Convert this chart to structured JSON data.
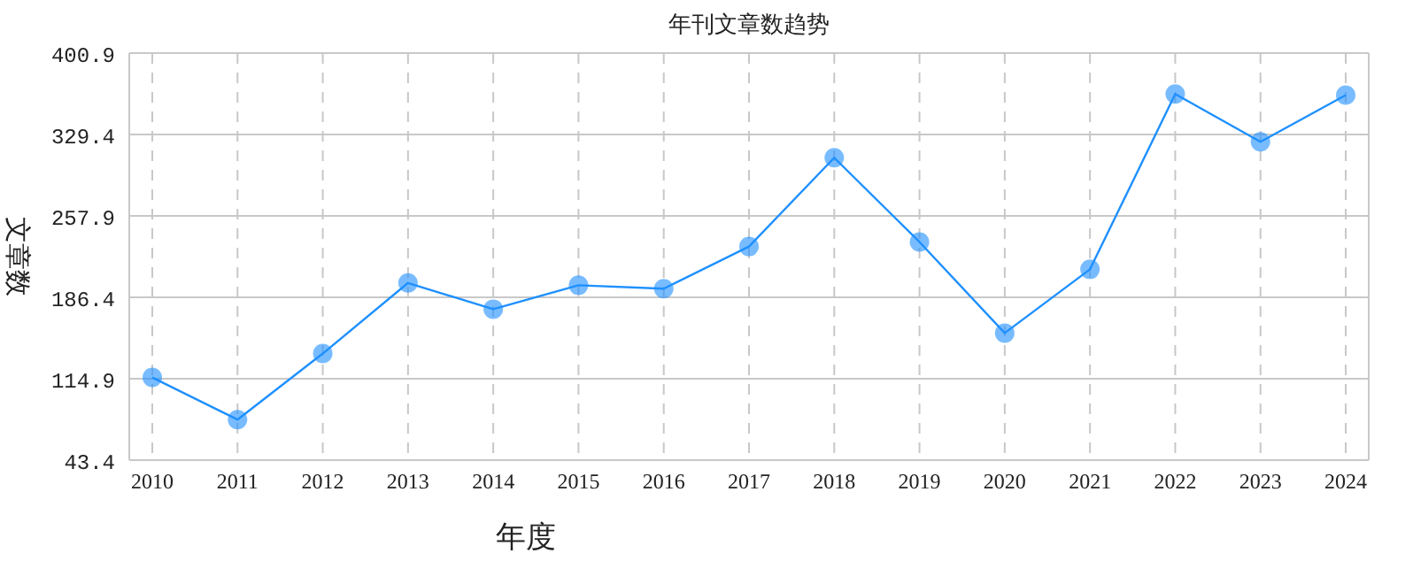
{
  "chart_data": {
    "type": "line",
    "title": "年刊文章数趋势",
    "xlabel": "年度",
    "ylabel": "文章数",
    "categories": [
      "2010",
      "2011",
      "2012",
      "2013",
      "2014",
      "2015",
      "2016",
      "2017",
      "2018",
      "2019",
      "2020",
      "2021",
      "2022",
      "2023",
      "2024"
    ],
    "series": [
      {
        "color": "#1e90ff",
        "values": [
          116,
          79,
          137,
          199,
          176,
          197,
          194,
          231,
          309,
          235,
          155,
          211,
          365,
          323,
          364
        ]
      }
    ],
    "ylim": [
      43.4,
      400.9
    ],
    "yticks": [
      43.4,
      114.9,
      186.4,
      257.9,
      329.4,
      400.9
    ],
    "grid": true,
    "marker": "circle",
    "line_style": "solid"
  }
}
